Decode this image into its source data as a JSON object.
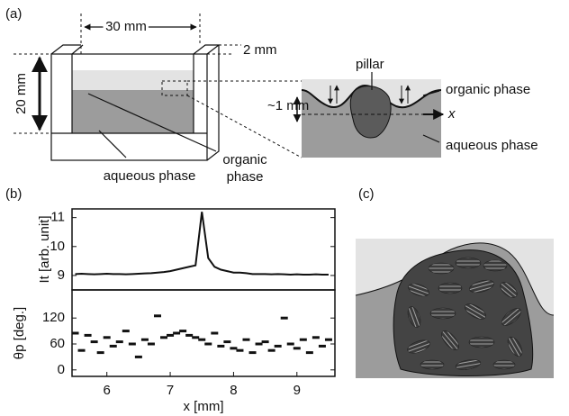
{
  "panels": {
    "a": {
      "label": "(a)",
      "width_label": "30 mm",
      "thickness_label": "2 mm",
      "height_label": "20 mm",
      "aqueous_label": "aqueous phase",
      "organic_label": [
        "organic",
        "phase"
      ],
      "inset": {
        "step_label": "~1 mm",
        "pillar_label": "pillar",
        "organic_label": "organic phase",
        "axis_label": "x",
        "aqueous_label": "aqueous phase"
      }
    },
    "b": {
      "label": "(b)"
    },
    "c": {
      "label": "(c)"
    }
  },
  "chart_data": [
    {
      "type": "line",
      "ylabel": "It [arb. unit]",
      "color": "#111111",
      "x": [
        5.5,
        5.6,
        5.7,
        5.8,
        5.9,
        6.0,
        6.1,
        6.2,
        6.3,
        6.4,
        6.5,
        6.6,
        6.7,
        6.8,
        6.9,
        7.0,
        7.1,
        7.2,
        7.3,
        7.4,
        7.5,
        7.6,
        7.7,
        7.8,
        7.9,
        8.0,
        8.1,
        8.2,
        8.3,
        8.4,
        8.5,
        8.6,
        8.7,
        8.8,
        8.9,
        9.0,
        9.1,
        9.2,
        9.3,
        9.4,
        9.5
      ],
      "values": [
        9.05,
        9.06,
        9.05,
        9.04,
        9.05,
        9.06,
        9.05,
        9.05,
        9.04,
        9.05,
        9.06,
        9.07,
        9.08,
        9.1,
        9.12,
        9.15,
        9.2,
        9.25,
        9.3,
        9.35,
        11.2,
        9.6,
        9.3,
        9.2,
        9.15,
        9.1,
        9.1,
        9.08,
        9.05,
        9.05,
        9.05,
        9.04,
        9.05,
        9.04,
        9.03,
        9.04,
        9.03,
        9.03,
        9.04,
        9.03,
        9.03
      ],
      "xlim": [
        5.45,
        9.6
      ],
      "ylim": [
        8.5,
        11.3
      ],
      "yticks": [
        9,
        10,
        11
      ]
    },
    {
      "type": "scatter",
      "ylabel": "θp [deg.]",
      "xlabel": "x [mm]",
      "color": "#111111",
      "x": [
        5.5,
        5.6,
        5.7,
        5.8,
        5.9,
        6.0,
        6.1,
        6.2,
        6.3,
        6.4,
        6.5,
        6.6,
        6.7,
        6.8,
        6.9,
        7.0,
        7.1,
        7.2,
        7.3,
        7.4,
        7.5,
        7.6,
        7.7,
        7.8,
        7.9,
        8.0,
        8.1,
        8.2,
        8.3,
        8.4,
        8.5,
        8.6,
        8.7,
        8.8,
        8.9,
        9.0,
        9.1,
        9.2,
        9.3,
        9.4,
        9.5
      ],
      "values": [
        85,
        45,
        80,
        65,
        40,
        75,
        55,
        65,
        90,
        60,
        30,
        70,
        60,
        125,
        75,
        80,
        85,
        90,
        80,
        75,
        70,
        60,
        85,
        55,
        65,
        50,
        45,
        70,
        40,
        60,
        65,
        45,
        55,
        120,
        60,
        50,
        70,
        40,
        75,
        55,
        70
      ],
      "xlim": [
        5.45,
        9.6
      ],
      "ylim": [
        -15,
        185
      ],
      "xticks": [
        6,
        7,
        8,
        9
      ],
      "yticks": [
        0,
        60,
        120
      ]
    }
  ]
}
